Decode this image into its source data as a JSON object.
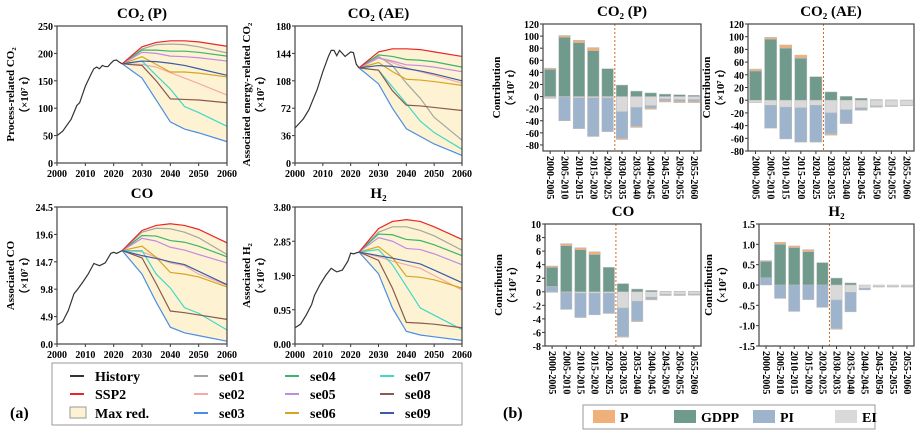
{
  "panel_labels": {
    "a": "(a)",
    "b": "(b)"
  },
  "legend_a": [
    {
      "label": "History",
      "color": "#333333",
      "kind": "line"
    },
    {
      "label": "SSP2",
      "color": "#e8262a",
      "kind": "line"
    },
    {
      "label": "Max red.",
      "color": "#fdf3d3",
      "kind": "fill"
    },
    {
      "label": "se01",
      "color": "#a5a5a5",
      "kind": "line"
    },
    {
      "label": "se02",
      "color": "#f5a9a9",
      "kind": "line"
    },
    {
      "label": "se03",
      "color": "#4a8ee6",
      "kind": "line"
    },
    {
      "label": "se04",
      "color": "#3cb46e",
      "kind": "line"
    },
    {
      "label": "se05",
      "color": "#c28be2",
      "kind": "line"
    },
    {
      "label": "se06",
      "color": "#d8a520",
      "kind": "line"
    },
    {
      "label": "se07",
      "color": "#3fd8c8",
      "kind": "line"
    },
    {
      "label": "se08",
      "color": "#8b5a50",
      "kind": "line"
    },
    {
      "label": "se09",
      "color": "#3a5ca6",
      "kind": "line"
    }
  ],
  "legend_b": [
    {
      "label": "P",
      "color": "#f0b07a"
    },
    {
      "label": "GDPP",
      "color": "#6f9a8c"
    },
    {
      "label": "PI",
      "color": "#9db4cc"
    },
    {
      "label": "EI",
      "color": "#d9d9d9"
    }
  ],
  "chart_data": [
    {
      "type": "line",
      "title": "CO₂ (P)",
      "ylabel": "Process-related CO₂",
      "yunit": "（×10⁷ t）",
      "xlim": [
        2000,
        2060
      ],
      "ylim": [
        0,
        250
      ],
      "xticks": [
        2000,
        2010,
        2020,
        2030,
        2040,
        2050,
        2060
      ],
      "yticks": [
        "0",
        "50",
        "100",
        "150",
        "200",
        "250"
      ],
      "history": {
        "x": [
          2000,
          2002,
          2005,
          2007,
          2008,
          2010,
          2012,
          2013,
          2014,
          2015,
          2016,
          2017,
          2018,
          2019,
          2020,
          2021,
          2022,
          2023
        ],
        "y": [
          50,
          58,
          80,
          105,
          110,
          140,
          162,
          172,
          175,
          172,
          178,
          176,
          176,
          182,
          187,
          188,
          184,
          181
        ]
      },
      "scenario_x": [
        2023,
        2030,
        2035,
        2040,
        2045,
        2050,
        2060
      ],
      "series": {
        "SSP2": [
          181,
          212,
          220,
          223,
          223,
          221,
          213
        ],
        "se01": [
          181,
          208,
          216,
          217,
          216,
          212,
          201
        ],
        "se02": [
          181,
          180,
          175,
          165,
          155,
          145,
          124
        ],
        "se03": [
          181,
          155,
          115,
          75,
          62,
          55,
          39
        ],
        "se04": [
          181,
          206,
          206,
          204,
          204,
          202,
          195
        ],
        "se05": [
          181,
          202,
          200,
          195,
          194,
          192,
          186
        ],
        "se06": [
          181,
          194,
          180,
          166,
          166,
          164,
          157
        ],
        "se07": [
          181,
          186,
          160,
          135,
          103,
          92,
          67
        ],
        "se08": [
          181,
          178,
          150,
          117,
          116,
          115,
          110
        ],
        "se09": [
          181,
          186,
          185,
          182,
          178,
          172,
          160
        ]
      }
    },
    {
      "type": "line",
      "title": "CO₂ (AE)",
      "ylabel": "Associated energy-related CO₂",
      "yunit": "（×10⁷ t）",
      "xlim": [
        2000,
        2060
      ],
      "ylim": [
        0,
        180
      ],
      "xticks": [
        2000,
        2010,
        2020,
        2030,
        2040,
        2050,
        2060
      ],
      "yticks": [
        "0",
        "36",
        "72",
        "108",
        "144",
        "180"
      ],
      "history": {
        "x": [
          2000,
          2003,
          2005,
          2008,
          2010,
          2012,
          2013,
          2014,
          2015,
          2016,
          2018,
          2020,
          2021,
          2022,
          2023
        ],
        "y": [
          46,
          58,
          70,
          97,
          120,
          140,
          148,
          148,
          141,
          148,
          140,
          146,
          145,
          130,
          125
        ]
      },
      "scenario_x": [
        2023,
        2030,
        2035,
        2040,
        2045,
        2050,
        2060
      ],
      "series": {
        "SSP2": [
          125,
          146,
          150,
          150,
          149,
          146,
          140
        ],
        "se01": [
          125,
          140,
          128,
          105,
          85,
          60,
          30
        ],
        "se02": [
          125,
          138,
          132,
          125,
          120,
          115,
          105
        ],
        "se03": [
          125,
          104,
          72,
          45,
          35,
          25,
          10
        ],
        "se04": [
          125,
          142,
          140,
          136,
          135,
          133,
          126
        ],
        "se05": [
          125,
          138,
          134,
          129,
          128,
          126,
          120
        ],
        "se06": [
          125,
          132,
          120,
          110,
          109,
          107,
          102
        ],
        "se07": [
          125,
          122,
          100,
          78,
          55,
          40,
          18
        ],
        "se08": [
          125,
          122,
          95,
          76,
          75,
          73,
          69
        ],
        "se09": [
          125,
          128,
          127,
          124,
          121,
          117,
          108
        ]
      }
    },
    {
      "type": "line",
      "title": "CO",
      "ylabel": "Associated CO",
      "yunit": "（×10⁷ t）",
      "xlim": [
        2000,
        2060
      ],
      "ylim": [
        0,
        24.5
      ],
      "xticks": [
        2000,
        2010,
        2020,
        2030,
        2040,
        2050,
        2060
      ],
      "yticks": [
        "0.0",
        "4.9",
        "9.8",
        "14.7",
        "19.6",
        "24.5"
      ],
      "history": {
        "x": [
          2000,
          2002,
          2004,
          2006,
          2007,
          2009,
          2011,
          2013,
          2015,
          2017,
          2019,
          2020,
          2021,
          2023
        ],
        "y": [
          3.4,
          4,
          6,
          9,
          9.6,
          11,
          12.5,
          14.4,
          14,
          14.5,
          16.2,
          16.4,
          16.2,
          16.7
        ]
      },
      "scenario_x": [
        2023,
        2030,
        2035,
        2040,
        2045,
        2050,
        2060
      ],
      "series": {
        "SSP2": [
          16.7,
          20.3,
          21.2,
          21.5,
          21.2,
          20.5,
          18.1
        ],
        "se01": [
          16.7,
          20,
          20.7,
          20.6,
          20,
          19,
          16
        ],
        "se02": [
          16.7,
          16.5,
          15.5,
          14.5,
          14,
          12.5,
          10.5
        ],
        "se03": [
          16.7,
          12.5,
          7.5,
          3,
          2,
          1.5,
          0.5
        ],
        "se04": [
          16.7,
          19.4,
          19.3,
          18.5,
          18.2,
          17.5,
          15.6
        ],
        "se05": [
          16.7,
          18.9,
          18.4,
          17.3,
          16.8,
          16,
          14.5
        ],
        "se06": [
          16.7,
          17.5,
          15.5,
          12.8,
          12.5,
          12,
          10.2
        ],
        "se07": [
          16.7,
          16.7,
          12.5,
          10,
          6.5,
          5.5,
          2.5
        ],
        "se08": [
          16.7,
          15.4,
          10.8,
          5.9,
          5.6,
          5.2,
          4.4
        ],
        "se09": [
          16.7,
          15.8,
          15.3,
          14.7,
          14.2,
          13,
          10.6
        ]
      }
    },
    {
      "type": "line",
      "title": "H₂",
      "ylabel": "Associated H₂",
      "yunit": "（×10⁷ t）",
      "xlim": [
        2000,
        2060
      ],
      "ylim": [
        0,
        3.8
      ],
      "xticks": [
        2000,
        2010,
        2020,
        2030,
        2040,
        2050,
        2060
      ],
      "yticks": [
        "0.00",
        "0.95",
        "1.90",
        "2.85",
        "3.80"
      ],
      "history": {
        "x": [
          2000,
          2002,
          2004,
          2006,
          2007,
          2009,
          2011,
          2013,
          2014,
          2015,
          2017,
          2019,
          2020,
          2021,
          2023
        ],
        "y": [
          0.45,
          0.55,
          0.8,
          1.1,
          1.35,
          1.65,
          1.9,
          2.1,
          2.05,
          2.0,
          2.05,
          2.3,
          2.52,
          2.5,
          2.55
        ]
      },
      "scenario_x": [
        2023,
        2030,
        2035,
        2040,
        2045,
        2050,
        2060
      ],
      "series": {
        "SSP2": [
          2.55,
          3.2,
          3.4,
          3.45,
          3.4,
          3.25,
          2.9
        ],
        "se01": [
          2.55,
          3.1,
          3.25,
          3.25,
          3.15,
          3.0,
          2.6
        ],
        "se02": [
          2.55,
          2.42,
          2.3,
          2.2,
          2.1,
          1.9,
          1.5
        ],
        "se03": [
          2.55,
          1.95,
          1.0,
          0.35,
          0.25,
          0.2,
          0.1
        ],
        "se04": [
          2.55,
          3.05,
          3.03,
          2.9,
          2.87,
          2.75,
          2.45
        ],
        "se05": [
          2.55,
          2.95,
          2.85,
          2.65,
          2.62,
          2.5,
          2.2
        ],
        "se06": [
          2.55,
          2.7,
          2.4,
          1.88,
          1.85,
          1.78,
          1.55
        ],
        "se07": [
          2.55,
          2.62,
          2.2,
          1.6,
          1.0,
          0.8,
          0.4
        ],
        "se08": [
          2.55,
          2.32,
          1.55,
          0.6,
          0.58,
          0.55,
          0.45
        ],
        "se09": [
          2.55,
          2.45,
          2.38,
          2.3,
          2.22,
          2.05,
          1.7
        ]
      }
    },
    {
      "type": "bar",
      "stacked": true,
      "title": "CO₂ (P)",
      "ylabel": "Contribution",
      "yunit": "（×10⁷ t）",
      "ylim": [
        -90,
        120
      ],
      "yticks": [
        "-80",
        "-60",
        "-40",
        "-20",
        "0",
        "20",
        "40",
        "60",
        "80",
        "100",
        "120"
      ],
      "categories": [
        "2000-2005",
        "2005-2010",
        "2010-2015",
        "2015-2020",
        "2020-2025",
        "2030-2035",
        "2035-2040",
        "2040-2045",
        "2045-2050",
        "2050-2055",
        "2055-2060"
      ],
      "series": [
        {
          "name": "P",
          "values": [
            2,
            3,
            4,
            5,
            0,
            -2,
            -2,
            -2,
            -2,
            -2,
            -2
          ]
        },
        {
          "name": "GDPP",
          "values": [
            45,
            98,
            89,
            76,
            46,
            19,
            9,
            6,
            4,
            3,
            2
          ]
        },
        {
          "name": "PI",
          "values": [
            -1,
            -39,
            -51,
            -64,
            -56,
            -44,
            -31,
            -4,
            -3,
            -3,
            -3
          ]
        },
        {
          "name": "EI",
          "values": [
            -2,
            -1,
            -2,
            -2,
            -2,
            -25,
            -18,
            -15,
            -4,
            -5,
            -5
          ]
        }
      ]
    },
    {
      "type": "bar",
      "stacked": true,
      "title": "CO₂ (AE)",
      "ylabel": "Contribution",
      "yunit": "（×10⁷ t）",
      "ylim": [
        -80,
        120
      ],
      "yticks": [
        "-80",
        "-60",
        "-40",
        "-20",
        "0",
        "20",
        "40",
        "60",
        "80",
        "100",
        "120"
      ],
      "categories": [
        "2000-2005",
        "2005-2010",
        "2010-2015",
        "2015-2020",
        "2020-2025",
        "2030-2035",
        "2035-2040",
        "2040-2045",
        "2045-2050",
        "2050-2055",
        "2055-2060"
      ],
      "series": [
        {
          "name": "P",
          "values": [
            3,
            3,
            5,
            5,
            0,
            -2,
            -1,
            -1,
            -1,
            -0.5,
            -0.3
          ]
        },
        {
          "name": "GDPP",
          "values": [
            46,
            96,
            82,
            66,
            37,
            13,
            6,
            3,
            1,
            0.5,
            0.3
          ]
        },
        {
          "name": "PI",
          "values": [
            0,
            -36,
            -50,
            -54,
            -58,
            -33,
            -21,
            -3,
            -1,
            -0.5,
            -0.3
          ]
        },
        {
          "name": "EI",
          "values": [
            -4,
            -8,
            -11,
            -12,
            -8,
            -20,
            -15,
            -12,
            -9,
            -9,
            -8
          ]
        }
      ]
    },
    {
      "type": "bar",
      "stacked": true,
      "title": "CO",
      "ylabel": "Contribution",
      "yunit": "（×10⁷ t）",
      "ylim": [
        -8,
        10
      ],
      "yticks": [
        "-8",
        "-6",
        "-4",
        "-2",
        "0",
        "2",
        "4",
        "6",
        "8",
        "10"
      ],
      "categories": [
        "2000-2005",
        "2005-2010",
        "2010-2015",
        "2015-2020",
        "2020-2025",
        "2030-2035",
        "2035-2040",
        "2040-2045",
        "2045-2050",
        "2050-2055",
        "2055-2060"
      ],
      "series": [
        {
          "name": "P",
          "values": [
            0.2,
            0.3,
            0.3,
            0.4,
            0,
            -0.1,
            -0.1,
            -0.1,
            -0.05,
            -0.05,
            -0.05
          ]
        },
        {
          "name": "GDPP",
          "values": [
            2.8,
            6.8,
            6.2,
            5.5,
            3.6,
            1.2,
            0.4,
            0.2,
            0.05,
            0.05,
            0.05
          ]
        },
        {
          "name": "PI",
          "values": [
            0.8,
            -2.5,
            -3.6,
            -3.2,
            -3.0,
            -4.2,
            -2.9,
            -0.3,
            -0.1,
            -0.1,
            -0.1
          ]
        },
        {
          "name": "EI",
          "values": [
            -0.1,
            -0.1,
            -0.2,
            -0.2,
            -0.2,
            -2.4,
            -1.4,
            -0.8,
            -0.4,
            -0.4,
            -0.35
          ]
        }
      ]
    },
    {
      "type": "bar",
      "stacked": true,
      "title": "H₂",
      "ylabel": "Contribution",
      "yunit": "（×10⁷ t）",
      "ylim": [
        -1.5,
        1.5
      ],
      "yticks": [
        "-1.5",
        "-1.0",
        "-0.5",
        "0.0",
        "0.5",
        "1.0",
        "1.5"
      ],
      "categories": [
        "2000-2005",
        "2005-2010",
        "2010-2015",
        "2015-2020",
        "2020-2025",
        "2030-2035",
        "2035-2040",
        "2040-2045",
        "2045-2050",
        "2050-2055",
        "2055-2060"
      ],
      "series": [
        {
          "name": "P",
          "values": [
            0.02,
            0.05,
            0.04,
            0.05,
            0,
            -0.02,
            0,
            0,
            0,
            0,
            0
          ]
        },
        {
          "name": "GDPP",
          "values": [
            0.4,
            1.0,
            0.92,
            0.82,
            0.55,
            0.17,
            0.05,
            0,
            0,
            0,
            0
          ]
        },
        {
          "name": "PI",
          "values": [
            0.18,
            -0.33,
            -0.65,
            -0.36,
            -0.55,
            -0.7,
            -0.48,
            -0.04,
            -0.01,
            -0.01,
            -0.01
          ]
        },
        {
          "name": "EI",
          "values": [
            0,
            0,
            0,
            0,
            0,
            -0.37,
            -0.18,
            -0.08,
            -0.04,
            -0.04,
            -0.04
          ]
        }
      ]
    }
  ]
}
